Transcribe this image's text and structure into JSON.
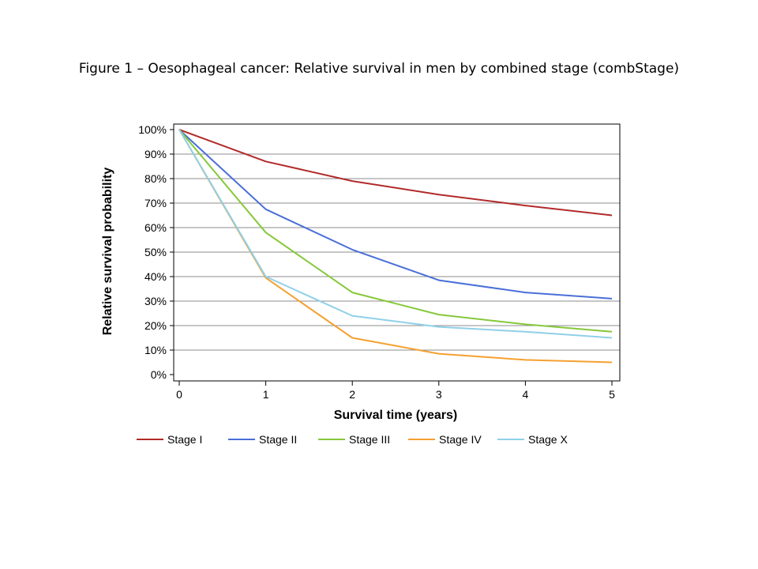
{
  "page_title": "Figure 1 – Oesophageal cancer: Relative survival in men by combined stage (combStage)",
  "chart_data": {
    "type": "line",
    "title": "Figure 1 – Oesophageal cancer: Relative survival in men by combined stage (combStage)",
    "xlabel": "Survival time (years)",
    "ylabel": "Relative survival probability",
    "x": [
      0,
      1,
      2,
      3,
      4,
      5
    ],
    "x_ticks": [
      "0",
      "1",
      "2",
      "3",
      "4",
      "5"
    ],
    "y_ticks": [
      "0%",
      "10%",
      "20%",
      "30%",
      "40%",
      "50%",
      "60%",
      "70%",
      "80%",
      "90%",
      "100%"
    ],
    "xlim": [
      0,
      5
    ],
    "ylim": [
      0,
      100
    ],
    "grid": true,
    "legend_position": "bottom",
    "series": [
      {
        "name": "Stage I",
        "color": "#b22a2a",
        "values": [
          100,
          87,
          79,
          73.5,
          69,
          65
        ]
      },
      {
        "name": "Stage II",
        "color": "#4a6fd8",
        "values": [
          100,
          67.5,
          51,
          38.5,
          33.5,
          31
        ]
      },
      {
        "name": "Stage III",
        "color": "#86c83a",
        "values": [
          100,
          58,
          33.5,
          24.5,
          20.5,
          17.5
        ]
      },
      {
        "name": "Stage IV",
        "color": "#f5a030",
        "values": [
          100,
          39.5,
          15,
          8.5,
          6,
          5
        ]
      },
      {
        "name": "Stage X",
        "color": "#8fd0e8",
        "values": [
          100,
          40,
          24,
          19.5,
          17.5,
          15
        ]
      }
    ]
  }
}
